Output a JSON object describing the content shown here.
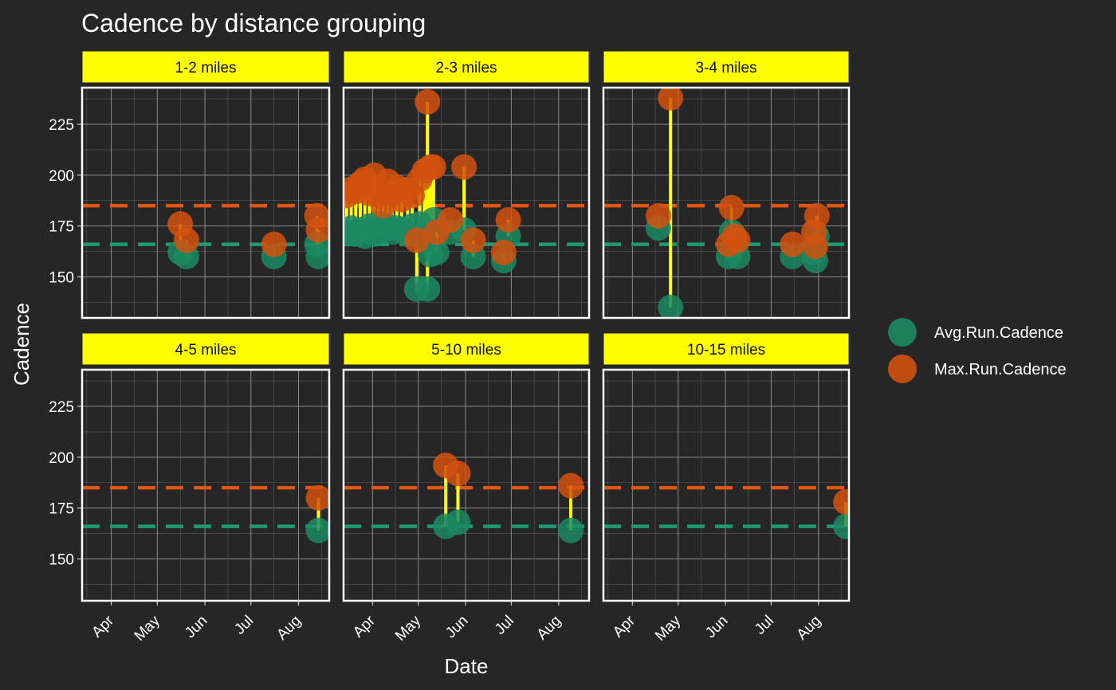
{
  "chart_data": {
    "type": "scatter",
    "title": "Cadence by distance grouping",
    "xlabel": "Date",
    "ylabel": "Cadence",
    "x_ticks": [
      "Apr",
      "May",
      "Jun",
      "Jul",
      "Aug"
    ],
    "x_tick_dates": [
      "2023-04-01",
      "2023-05-01",
      "2023-06-01",
      "2023-07-01",
      "2023-08-01"
    ],
    "xlim": [
      "2023-03-13",
      "2023-08-21"
    ],
    "y_ticks": [
      150,
      175,
      200,
      225
    ],
    "ylim": [
      130,
      240
    ],
    "grid": true,
    "legend": {
      "position": "right",
      "entries": [
        {
          "label": "Avg.Run.Cadence",
          "color": "#1b8a63"
        },
        {
          "label": "Max.Run.Cadence",
          "color": "#d2510f"
        }
      ]
    },
    "colors": {
      "background": "#262626",
      "strip": "#ffff00",
      "segment": "#ffff00",
      "avg": "#1b8a63",
      "max": "#d2510f",
      "avg_ref": "#1f9974",
      "max_ref": "#de5612"
    },
    "reference_lines": {
      "avg": 166,
      "max": 185
    },
    "facets": [
      {
        "label": "1-2 miles",
        "points": [
          {
            "date": "2023-05-16",
            "avg": 162,
            "max": 176
          },
          {
            "date": "2023-05-20",
            "avg": 160,
            "max": 168
          },
          {
            "date": "2023-07-16",
            "avg": 160,
            "max": 166
          },
          {
            "date": "2023-08-13",
            "avg": 166,
            "max": 180
          },
          {
            "date": "2023-08-14",
            "avg": 160,
            "max": 173
          }
        ]
      },
      {
        "label": "2-3 miles",
        "points": [
          {
            "date": "2023-03-15",
            "avg": 172,
            "max": 190
          },
          {
            "date": "2023-03-18",
            "avg": 174,
            "max": 193
          },
          {
            "date": "2023-03-21",
            "avg": 171,
            "max": 192
          },
          {
            "date": "2023-03-24",
            "avg": 173,
            "max": 196
          },
          {
            "date": "2023-03-27",
            "avg": 170,
            "max": 198
          },
          {
            "date": "2023-03-30",
            "avg": 175,
            "max": 191
          },
          {
            "date": "2023-04-02",
            "avg": 171,
            "max": 200
          },
          {
            "date": "2023-04-05",
            "avg": 176,
            "max": 190
          },
          {
            "date": "2023-04-08",
            "avg": 173,
            "max": 185
          },
          {
            "date": "2023-04-11",
            "avg": 175,
            "max": 197
          },
          {
            "date": "2023-04-14",
            "avg": 172,
            "max": 191
          },
          {
            "date": "2023-04-17",
            "avg": 174,
            "max": 194
          },
          {
            "date": "2023-04-20",
            "avg": 173,
            "max": 188
          },
          {
            "date": "2023-04-24",
            "avg": 171,
            "max": 193
          },
          {
            "date": "2023-04-27",
            "avg": 175,
            "max": 190
          },
          {
            "date": "2023-04-30",
            "avg": 144,
            "max": 168
          },
          {
            "date": "2023-05-02",
            "avg": 176,
            "max": 198
          },
          {
            "date": "2023-05-05",
            "avg": 168,
            "max": 202
          },
          {
            "date": "2023-05-07",
            "avg": 144,
            "max": 236
          },
          {
            "date": "2023-05-09",
            "avg": 161,
            "max": 204
          },
          {
            "date": "2023-05-11",
            "avg": 178,
            "max": 204
          },
          {
            "date": "2023-05-13",
            "avg": 162,
            "max": 172
          },
          {
            "date": "2023-05-22",
            "avg": 172,
            "max": 178
          },
          {
            "date": "2023-05-31",
            "avg": 173,
            "max": 204
          },
          {
            "date": "2023-06-06",
            "avg": 160,
            "max": 168
          },
          {
            "date": "2023-06-26",
            "avg": 158,
            "max": 162
          },
          {
            "date": "2023-06-29",
            "avg": 170,
            "max": 178
          }
        ]
      },
      {
        "label": "3-4 miles",
        "points": [
          {
            "date": "2023-04-18",
            "avg": 174,
            "max": 180
          },
          {
            "date": "2023-04-26",
            "avg": 135,
            "max": 238
          },
          {
            "date": "2023-06-03",
            "avg": 160,
            "max": 166
          },
          {
            "date": "2023-06-05",
            "avg": 172,
            "max": 184
          },
          {
            "date": "2023-06-07",
            "avg": 166,
            "max": 170
          },
          {
            "date": "2023-06-09",
            "avg": 160,
            "max": 168
          },
          {
            "date": "2023-07-15",
            "avg": 160,
            "max": 166
          },
          {
            "date": "2023-07-29",
            "avg": 162,
            "max": 172
          },
          {
            "date": "2023-07-30",
            "avg": 158,
            "max": 165
          },
          {
            "date": "2023-07-31",
            "avg": 170,
            "max": 180
          }
        ]
      },
      {
        "label": "4-5 miles",
        "points": [
          {
            "date": "2023-08-14",
            "avg": 164,
            "max": 180
          }
        ]
      },
      {
        "label": "5-10 miles",
        "points": [
          {
            "date": "2023-05-19",
            "avg": 166,
            "max": 196
          },
          {
            "date": "2023-05-27",
            "avg": 168,
            "max": 192
          },
          {
            "date": "2023-08-09",
            "avg": 164,
            "max": 186
          }
        ]
      },
      {
        "label": "10-15 miles",
        "points": [
          {
            "date": "2023-08-19",
            "avg": 166,
            "max": 178
          }
        ]
      }
    ]
  }
}
